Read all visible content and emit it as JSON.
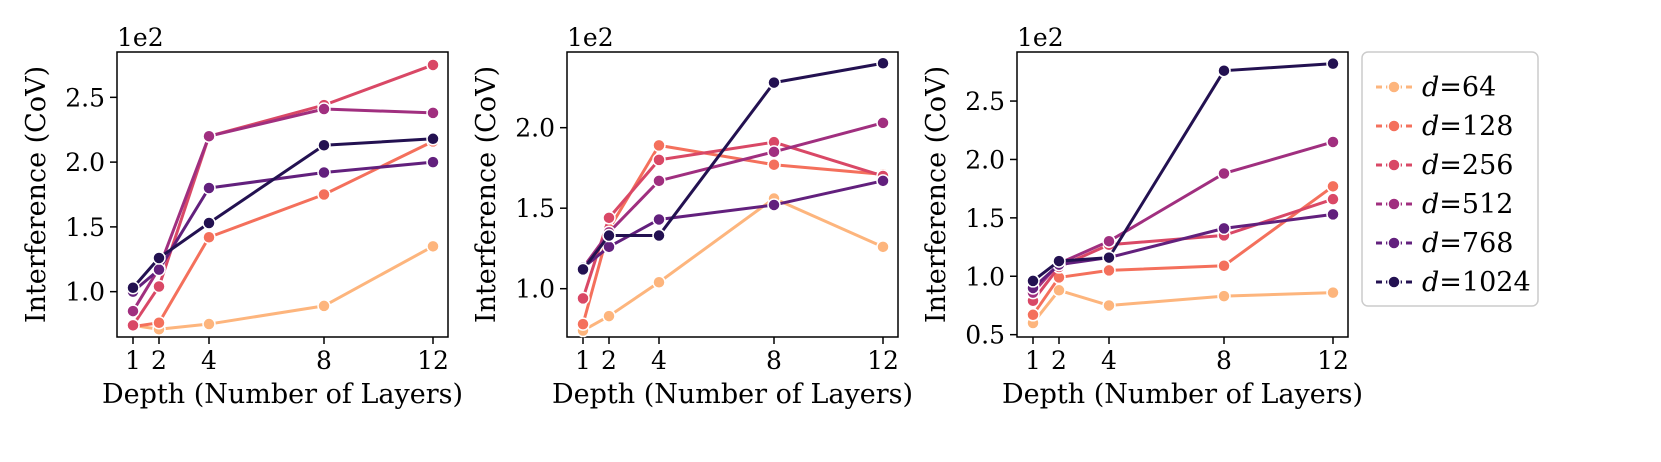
{
  "chart_data": {
    "type": "line",
    "x": [
      1,
      2,
      4,
      8,
      12
    ],
    "legend": {
      "placement": "right",
      "entries": [
        "d=64",
        "d=128",
        "d=256",
        "d=512",
        "d=768",
        "d=1024"
      ]
    },
    "series_colors": [
      "#fdb57d",
      "#f4705c",
      "#d94866",
      "#a02f7f",
      "#62207d",
      "#231151"
    ],
    "panels": [
      {
        "xlabel": "Depth (Number of Layers)",
        "ylabel": "Interference (CoV)",
        "y_offset_label": "1e2",
        "ylim": [
          0.65,
          2.85
        ],
        "yticks": [
          1.0,
          1.5,
          2.0,
          2.5
        ],
        "ytick_labels": [
          "1.0",
          "1.5",
          "2.0",
          "2.5"
        ],
        "xticks": [
          1,
          2,
          4,
          8,
          12
        ],
        "xtick_labels": [
          "1",
          "2",
          "4",
          "8",
          "12"
        ],
        "grid": false,
        "series": [
          {
            "name": "d=64",
            "values": [
              0.74,
              0.71,
              0.75,
              0.89,
              1.35
            ]
          },
          {
            "name": "d=128",
            "values": [
              0.73,
              0.76,
              1.42,
              1.75,
              2.16
            ]
          },
          {
            "name": "d=256",
            "values": [
              0.74,
              1.04,
              2.2,
              2.44,
              2.75
            ]
          },
          {
            "name": "d=512",
            "values": [
              0.85,
              1.18,
              2.2,
              2.41,
              2.38
            ]
          },
          {
            "name": "d=768",
            "values": [
              1.0,
              1.17,
              1.8,
              1.92,
              2.0
            ]
          },
          {
            "name": "d=1024",
            "values": [
              1.03,
              1.26,
              1.53,
              2.13,
              2.18
            ]
          }
        ]
      },
      {
        "xlabel": "Depth (Number of Layers)",
        "ylabel": "Interference (CoV)",
        "y_offset_label": "1e2",
        "ylim": [
          0.7,
          2.47
        ],
        "yticks": [
          1.0,
          1.5,
          2.0
        ],
        "ytick_labels": [
          "1.0",
          "1.5",
          "2.0"
        ],
        "xticks": [
          1,
          2,
          4,
          8,
          12
        ],
        "xtick_labels": [
          "1",
          "2",
          "4",
          "8",
          "12"
        ],
        "grid": false,
        "series": [
          {
            "name": "d=64",
            "values": [
              0.74,
              0.83,
              1.04,
              1.56,
              1.26
            ]
          },
          {
            "name": "d=128",
            "values": [
              0.78,
              1.37,
              1.89,
              1.77,
              1.71
            ]
          },
          {
            "name": "d=256",
            "values": [
              0.94,
              1.44,
              1.8,
              1.91,
              1.7
            ]
          },
          {
            "name": "d=512",
            "values": [
              1.13,
              1.35,
              1.67,
              1.85,
              2.03
            ]
          },
          {
            "name": "d=768",
            "values": [
              1.13,
              1.26,
              1.43,
              1.52,
              1.67
            ]
          },
          {
            "name": "d=1024",
            "values": [
              1.12,
              1.33,
              1.33,
              2.28,
              2.4
            ]
          }
        ]
      },
      {
        "xlabel": "Depth (Number of Layers)",
        "ylabel": "Interference (CoV)",
        "y_offset_label": "1e2",
        "ylim": [
          0.48,
          2.92
        ],
        "yticks": [
          0.5,
          1.0,
          1.5,
          2.0,
          2.5
        ],
        "ytick_labels": [
          "0.5",
          "1.0",
          "1.5",
          "2.0",
          "2.5"
        ],
        "xticks": [
          1,
          2,
          4,
          8,
          12
        ],
        "xtick_labels": [
          "1",
          "2",
          "4",
          "8",
          "12"
        ],
        "grid": false,
        "series": [
          {
            "name": "d=64",
            "values": [
              0.6,
              0.88,
              0.75,
              0.83,
              0.86
            ]
          },
          {
            "name": "d=128",
            "values": [
              0.67,
              0.99,
              1.05,
              1.09,
              1.77
            ]
          },
          {
            "name": "d=256",
            "values": [
              0.79,
              1.08,
              1.27,
              1.35,
              1.66
            ]
          },
          {
            "name": "d=512",
            "values": [
              0.86,
              1.11,
              1.3,
              1.88,
              2.15
            ]
          },
          {
            "name": "d=768",
            "values": [
              0.9,
              1.1,
              1.16,
              1.41,
              1.53
            ]
          },
          {
            "name": "d=1024",
            "values": [
              0.96,
              1.13,
              1.16,
              2.76,
              2.82
            ]
          }
        ]
      }
    ]
  }
}
